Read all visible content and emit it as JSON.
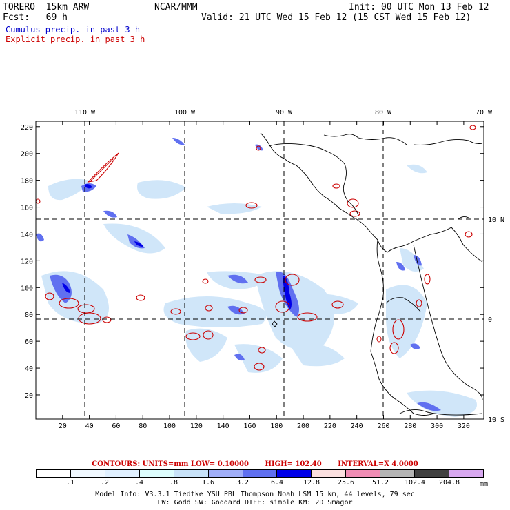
{
  "header": {
    "model": "TORERO  15km ARW",
    "org": "NCAR/MMM",
    "init": "Init: 00 UTC Mon 13 Feb 12",
    "fcst": "Fcst:   69 h",
    "valid": "Valid: 21 UTC Wed 15 Feb 12 (15 CST Wed 15 Feb 12)",
    "field1": "Cumulus precip. in past 3 h",
    "field2": "Explicit precip. in past 3 h"
  },
  "map": {
    "lon_labels": [
      "110 W",
      "100 W",
      "90 W",
      "80 W",
      "70 W"
    ],
    "lat_labels": [
      "10 N",
      "0",
      "10 S"
    ],
    "x_ticks": [
      "20",
      "40",
      "60",
      "80",
      "100",
      "120",
      "140",
      "160",
      "180",
      "200",
      "220",
      "240",
      "260",
      "280",
      "300",
      "320"
    ],
    "y_ticks": [
      "220",
      "200",
      "180",
      "160",
      "140",
      "120",
      "100",
      "80",
      "60",
      "40",
      "20"
    ],
    "x_range": [
      0,
      335
    ],
    "y_range": [
      2,
      224
    ],
    "field_colors": {
      "cumulus": "#0000ff",
      "explicit": "#cc0000"
    }
  },
  "contours": {
    "label": "CONTOURS:  UNITS=mm  LOW= 0.10000",
    "high": "HIGH=  102.40",
    "interval": "INTERVAL=X  4.0000"
  },
  "colorbar": {
    "unit": "mm",
    "labels": [
      ".1",
      ".2",
      ".4",
      ".8",
      "1.6",
      "3.2",
      "6.4",
      "12.8",
      "25.6",
      "51.2",
      "102.4",
      "204.8"
    ],
    "colors": [
      "#ffffff",
      "#f0f8ff",
      "#e0f0ff",
      "#ddfdfd",
      "#c8e2f8",
      "#a0aef8",
      "#6070f0",
      "#0000e8",
      "#fbe0e0",
      "#f08cb4",
      "#b4b4b4",
      "#404040",
      "#d8a8f0"
    ]
  },
  "footer": {
    "line1": "Model Info: V3.3.1    Tiedtke YSU PBL  Thompson     Noah LSM  15 km,    44 levels,    79 sec",
    "line2": "LW: Godd SW: Goddard DIFF: simple KM: 2D Smagor"
  }
}
